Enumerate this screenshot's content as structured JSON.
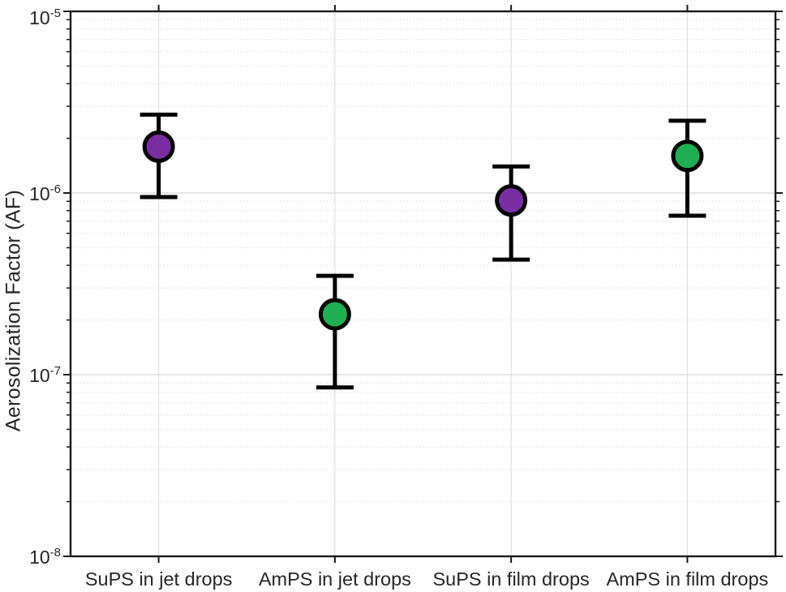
{
  "figure": {
    "background": "#FFFFFF"
  },
  "chart_data": {
    "type": "scatter",
    "title": "",
    "xlabel": "",
    "ylabel": "Aerosolization Factor (AF)",
    "y_scale": "log",
    "ylim": [
      1e-08,
      1e-05
    ],
    "y_tick_exponents": [
      -5,
      -6,
      -7,
      -8
    ],
    "y_tick_labels": [
      "10-5",
      "10-6",
      "10-7",
      "10-8"
    ],
    "categories": [
      "SuPS in jet drops",
      "AmPS in jet drops",
      "SuPS in film drops",
      "AmPS in film drops"
    ],
    "series": [
      {
        "name": "Aerosolization Factor",
        "points": [
          {
            "category": "SuPS in jet drops",
            "value": 1.8e-06,
            "err_low": 9.5e-07,
            "err_high": 2.7e-06,
            "color": "#7A2EA3"
          },
          {
            "category": "AmPS in jet drops",
            "value": 2.15e-07,
            "err_low": 8.5e-08,
            "err_high": 3.5e-07,
            "color": "#1FAE52"
          },
          {
            "category": "SuPS in film drops",
            "value": 9.1e-07,
            "err_low": 4.3e-07,
            "err_high": 1.4e-06,
            "color": "#7A2EA3"
          },
          {
            "category": "AmPS in film drops",
            "value": 1.6e-06,
            "err_low": 7.5e-07,
            "err_high": 2.5e-06,
            "color": "#1FAE52"
          }
        ]
      }
    ],
    "marker": {
      "shape": "circle",
      "edge_color": "#000000"
    },
    "error_bar": {
      "color": "#000000"
    },
    "grid": {
      "major_horizontal": "solid",
      "minor_horizontal": "dotted",
      "vertical": "solid",
      "legend": "none"
    },
    "colors": {
      "purple": "#7A2EA3",
      "green": "#1FAE52",
      "axis": "#1A1A1A",
      "text": "#262626",
      "grid_major": "#D8D8D8",
      "grid_minor": "#E4E4E4",
      "grid_vertical": "#E2E2E2"
    }
  }
}
